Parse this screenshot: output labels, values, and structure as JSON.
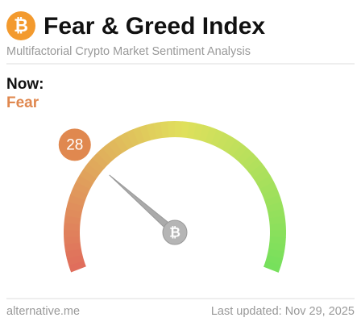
{
  "chart_data": {
    "type": "gauge",
    "title": "Fear & Greed Index",
    "subtitle": "Multifactorial Crypto Market Sentiment Analysis",
    "now_label": "Now:",
    "status": "Fear",
    "value": 28,
    "ylim": [
      0,
      100
    ],
    "source": "alternative.me",
    "updated": "Last updated: Nov 29, 2025"
  }
}
